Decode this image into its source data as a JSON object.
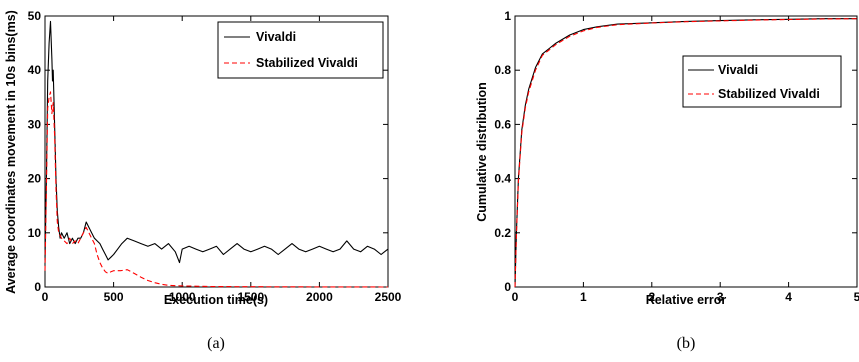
{
  "chart_data": [
    {
      "type": "line",
      "caption": "(a)",
      "xlabel": "Execution time(s)",
      "ylabel": "Average coordinates movement in 10s bins(ms)",
      "xlim": [
        0,
        2500
      ],
      "ylim": [
        0,
        50
      ],
      "xticks": [
        0,
        500,
        1000,
        1500,
        2000,
        2500
      ],
      "yticks": [
        0,
        10,
        20,
        30,
        40,
        50
      ],
      "grid": false,
      "legend_position": "top-right",
      "series": [
        {
          "name": "Vivaldi",
          "color": "#000000",
          "dash": "solid",
          "x": [
            0,
            10,
            20,
            30,
            40,
            50,
            55,
            60,
            70,
            80,
            90,
            100,
            110,
            120,
            140,
            160,
            180,
            200,
            220,
            240,
            260,
            280,
            300,
            320,
            340,
            360,
            380,
            400,
            420,
            440,
            460,
            480,
            500,
            530,
            560,
            600,
            650,
            700,
            750,
            800,
            850,
            900,
            950,
            980,
            1000,
            1050,
            1100,
            1150,
            1200,
            1250,
            1300,
            1350,
            1400,
            1450,
            1500,
            1550,
            1600,
            1650,
            1700,
            1750,
            1800,
            1850,
            1900,
            1950,
            2000,
            2050,
            2100,
            2150,
            2200,
            2250,
            2300,
            2350,
            2400,
            2450,
            2500
          ],
          "y": [
            5,
            20,
            38,
            45,
            49,
            42,
            38,
            40,
            30,
            20,
            14,
            11,
            9,
            10,
            9,
            10,
            8,
            9,
            8,
            9,
            9,
            10,
            12,
            11,
            10,
            9,
            8.5,
            8,
            7,
            6,
            5,
            5.5,
            6,
            7,
            8,
            9,
            8.5,
            8,
            7.5,
            8,
            7,
            8,
            6.5,
            4.5,
            7,
            7.5,
            7,
            6.5,
            7,
            7.5,
            6,
            7,
            8,
            7,
            6.5,
            7,
            7.5,
            7,
            6,
            7,
            8,
            7,
            6.5,
            7,
            7.5,
            7,
            6.5,
            7,
            8.5,
            7,
            6.5,
            7.5,
            7,
            6,
            7
          ]
        },
        {
          "name": "Stabilized Vivaldi",
          "color": "#ff0000",
          "dash": "dashed",
          "x": [
            0,
            10,
            20,
            30,
            40,
            50,
            60,
            70,
            80,
            90,
            100,
            120,
            140,
            160,
            180,
            200,
            220,
            240,
            260,
            280,
            300,
            320,
            340,
            360,
            380,
            400,
            420,
            440,
            460,
            480,
            500,
            550,
            600,
            650,
            700,
            750,
            800,
            850,
            900,
            1000,
            1200,
            1500,
            2000,
            2500
          ],
          "y": [
            3,
            18,
            33,
            35,
            36,
            32,
            34,
            28,
            18,
            12,
            10,
            9,
            8.5,
            8,
            9,
            8,
            8.5,
            8,
            9,
            10,
            11,
            10,
            9,
            8,
            6,
            4.5,
            3.5,
            2.8,
            2.5,
            2.8,
            3,
            3,
            3.2,
            2.5,
            1.8,
            1.2,
            0.8,
            0.5,
            0.3,
            0.2,
            0.1,
            0.05,
            0.02,
            0
          ]
        }
      ]
    },
    {
      "type": "line",
      "caption": "(b)",
      "xlabel": "Relative error",
      "ylabel": "Cumulative distribution",
      "xlim": [
        0,
        5
      ],
      "ylim": [
        0,
        1
      ],
      "xticks": [
        0,
        1,
        2,
        3,
        4,
        5
      ],
      "yticks": [
        0,
        0.2,
        0.4,
        0.6,
        0.8,
        1
      ],
      "grid": false,
      "legend_position": "top-right",
      "series": [
        {
          "name": "Vivaldi",
          "color": "#000000",
          "dash": "solid",
          "x": [
            0,
            0.02,
            0.05,
            0.1,
            0.15,
            0.2,
            0.3,
            0.4,
            0.5,
            0.6,
            0.8,
            1.0,
            1.2,
            1.5,
            2.0,
            2.5,
            3.0,
            3.5,
            4.0,
            4.5,
            5.0
          ],
          "y": [
            0,
            0.2,
            0.4,
            0.58,
            0.67,
            0.73,
            0.81,
            0.86,
            0.88,
            0.9,
            0.93,
            0.95,
            0.96,
            0.97,
            0.975,
            0.98,
            0.983,
            0.986,
            0.988,
            0.99,
            0.99
          ]
        },
        {
          "name": "Stabilized Vivaldi",
          "color": "#ff0000",
          "dash": "dashed",
          "x": [
            0,
            0.02,
            0.05,
            0.1,
            0.15,
            0.2,
            0.3,
            0.4,
            0.5,
            0.6,
            0.8,
            1.0,
            1.2,
            1.5,
            2.0,
            2.5,
            3.0,
            3.5,
            4.0,
            4.5,
            5.0
          ],
          "y": [
            0,
            0.19,
            0.39,
            0.57,
            0.66,
            0.72,
            0.8,
            0.855,
            0.875,
            0.895,
            0.925,
            0.945,
            0.958,
            0.968,
            0.974,
            0.979,
            0.982,
            0.985,
            0.987,
            0.989,
            0.99
          ]
        }
      ]
    }
  ]
}
